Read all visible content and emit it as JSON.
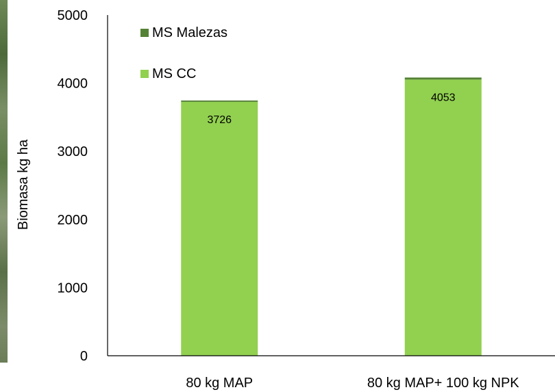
{
  "chart_data": {
    "type": "bar",
    "stacked": true,
    "categories": [
      "80 kg MAP",
      "80 kg MAP+ 100 kg NPK"
    ],
    "series": [
      {
        "name": "MS CC",
        "values": [
          3726,
          4053
        ],
        "color": "#92d050"
      },
      {
        "name": "MS Malezas",
        "values": [
          20,
          30
        ],
        "color": "#548235"
      }
    ],
    "data_labels": [
      "3726",
      "4053"
    ],
    "ylabel": "Biomasa kg ha",
    "ylim": [
      0,
      5000
    ],
    "yticks": [
      "0",
      "1000",
      "2000",
      "3000",
      "4000",
      "5000"
    ],
    "grid": false,
    "legend_position": "top-left"
  }
}
